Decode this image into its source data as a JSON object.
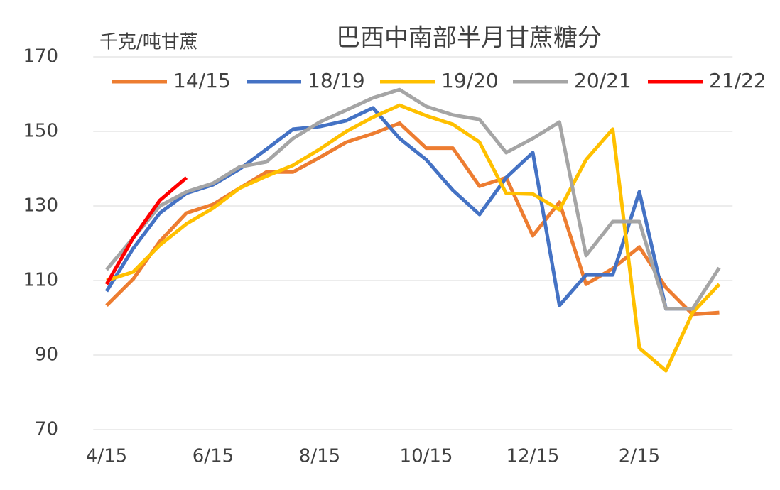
{
  "chart_data": {
    "type": "line",
    "title": "巴西中南部半月甘蔗糖分",
    "y_label": "千克/吨甘蔗",
    "categories": [
      "4/15",
      null,
      null,
      null,
      "6/15",
      null,
      null,
      null,
      "8/15",
      null,
      null,
      null,
      "10/15",
      null,
      null,
      null,
      "12/15",
      null,
      null,
      null,
      "2/15",
      null,
      null,
      null
    ],
    "ylim": [
      70,
      170
    ],
    "yticks": [
      70,
      90,
      110,
      130,
      150,
      170
    ],
    "grid": true,
    "legend": "top",
    "series": [
      {
        "name": "14/15",
        "color": "#ED7D31",
        "values": [
          103.3,
          110.4,
          120.5,
          128.1,
          130.4,
          134.8,
          139.1,
          139.1,
          143,
          147.1,
          149.4,
          152.2,
          145.5,
          145.5,
          135.3,
          137.6,
          122,
          131,
          109,
          113.2,
          119,
          108.1,
          100.9,
          101.4
        ]
      },
      {
        "name": "18/19",
        "color": "#4472C4",
        "values": [
          107.1,
          118.6,
          128.1,
          133.4,
          135.7,
          139.9,
          145.2,
          150.6,
          151.3,
          152.9,
          156.3,
          148.1,
          142.4,
          134.2,
          127.7,
          137.6,
          144.3,
          103.3,
          111.5,
          111.5,
          133.8,
          102.4,
          102.4,
          null
        ]
      },
      {
        "name": "19/20",
        "color": "#FFC000",
        "values": [
          110,
          112.3,
          119.5,
          125.2,
          129.4,
          134.8,
          138,
          140.9,
          145.2,
          150,
          153.8,
          157,
          154.2,
          151.9,
          147.1,
          133.4,
          133.2,
          129,
          142.4,
          150.6,
          91.9,
          85.8,
          101.4,
          109
        ]
      },
      {
        "name": "20/21",
        "color": "#A5A5A5",
        "values": [
          112.9,
          121.4,
          130,
          133.8,
          136.1,
          140.5,
          141.8,
          148.1,
          152.5,
          155.7,
          159,
          161.2,
          156.7,
          154.4,
          153.2,
          144.3,
          148.1,
          152.5,
          116.7,
          125.8,
          125.8,
          102.4,
          102.4,
          113.4
        ]
      },
      {
        "name": "21/22",
        "color": "#FF0000",
        "values": [
          109,
          121.4,
          131.5,
          137.6,
          null,
          null,
          null,
          null,
          null,
          null,
          null,
          null,
          null,
          null,
          null,
          null,
          null,
          null,
          null,
          null,
          null,
          null,
          null,
          null
        ]
      }
    ]
  }
}
